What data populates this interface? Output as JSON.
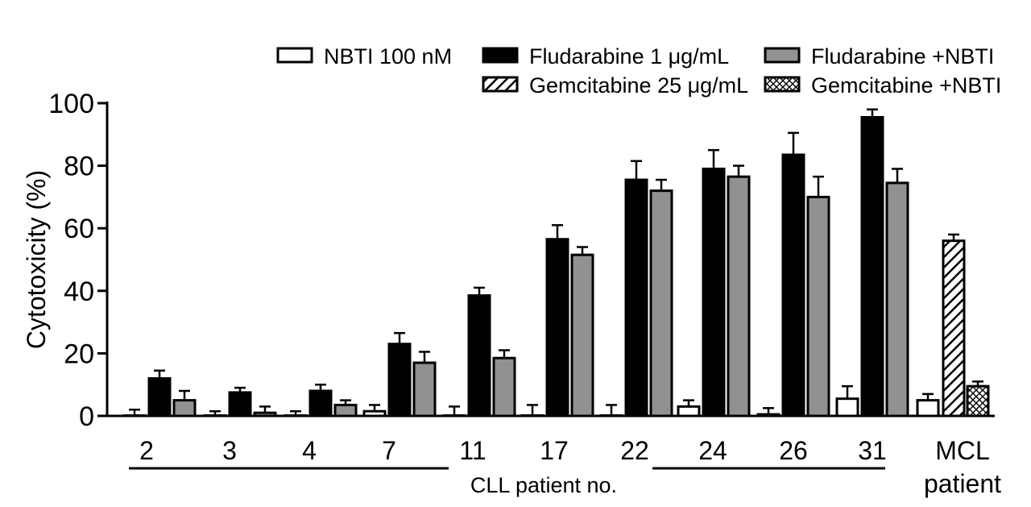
{
  "chart_data": {
    "type": "bar",
    "title": "",
    "ylabel": "Cytotoxicity (%)",
    "xlabel": "CLL patient no.",
    "ylim": [
      0,
      100
    ],
    "yticks": [
      0,
      20,
      40,
      60,
      80,
      100
    ],
    "categories": [
      "2",
      "3",
      "4",
      "7",
      "11",
      "17",
      "22",
      "24",
      "26",
      "31",
      "MCL"
    ],
    "mcl_label_line2": "patient",
    "series": [
      {
        "name": "NBTI 100 nM",
        "style": "white",
        "values": [
          0,
          0,
          0,
          1.5,
          0,
          0,
          0,
          3,
          0.5,
          5.5,
          5
        ],
        "errors": [
          2,
          1.5,
          1.5,
          2,
          3,
          3.5,
          3.5,
          2,
          2,
          4,
          2
        ]
      },
      {
        "name": "Fludarabine 1 μg/mL",
        "style": "black",
        "values": [
          12,
          7.5,
          8,
          23,
          38.5,
          56.5,
          75.5,
          79,
          83.5,
          95.5,
          null
        ],
        "errors": [
          2.5,
          1.5,
          2,
          3.5,
          2.5,
          4.5,
          6,
          6,
          7,
          2.5,
          null
        ]
      },
      {
        "name": "Fludarabine +NBTI",
        "style": "gray",
        "values": [
          5,
          1,
          3.5,
          17,
          18.5,
          51.5,
          72,
          76.5,
          70,
          74.5,
          null
        ],
        "errors": [
          3,
          2,
          1.5,
          3.5,
          2.5,
          2.5,
          3.5,
          3.5,
          6.5,
          4.5,
          null
        ]
      },
      {
        "name": "Gemcitabine 25 μg/mL",
        "style": "hatched",
        "values": [
          null,
          null,
          null,
          null,
          null,
          null,
          null,
          null,
          null,
          null,
          56
        ],
        "errors": [
          null,
          null,
          null,
          null,
          null,
          null,
          null,
          null,
          null,
          null,
          2
        ]
      },
      {
        "name": "Gemcitabine +NBTI",
        "style": "crosshatched",
        "values": [
          null,
          null,
          null,
          null,
          null,
          null,
          null,
          null,
          null,
          null,
          9.5
        ],
        "errors": [
          null,
          null,
          null,
          null,
          null,
          null,
          null,
          null,
          null,
          null,
          1.5
        ]
      }
    ],
    "legend_position": "top-right",
    "grid": false
  }
}
